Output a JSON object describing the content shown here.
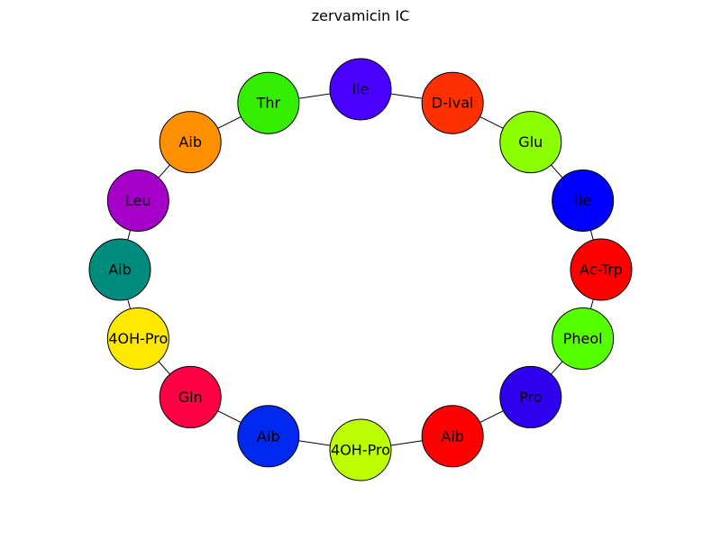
{
  "title": "zervamicin IC",
  "nodes": [
    {
      "label": "Ac-Trp",
      "color": "#ff0000"
    },
    {
      "label": "Ile",
      "color": "#0000ff"
    },
    {
      "label": "Glu",
      "color": "#8cff00"
    },
    {
      "label": "D-Ival",
      "color": "#ff3000"
    },
    {
      "label": "Ile",
      "color": "#4a00ff"
    },
    {
      "label": "Thr",
      "color": "#34ee00"
    },
    {
      "label": "Aib",
      "color": "#ff9000"
    },
    {
      "label": "Leu",
      "color": "#a500c8"
    },
    {
      "label": "Aib",
      "color": "#008c7c"
    },
    {
      "label": "4OH-Pro",
      "color": "#ffe800"
    },
    {
      "label": "Gln",
      "color": "#ff0044"
    },
    {
      "label": "Aib",
      "color": "#0028ee"
    },
    {
      "label": "4OH-Pro",
      "color": "#bbff00"
    },
    {
      "label": "Aib",
      "color": "#ff0000"
    },
    {
      "label": "Pro",
      "color": "#3000ee"
    },
    {
      "label": "Pheol",
      "color": "#55ff00"
    }
  ]
}
